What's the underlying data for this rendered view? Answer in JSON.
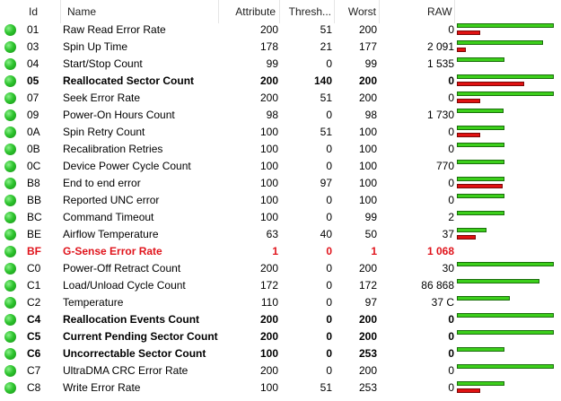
{
  "columns": {
    "id": "Id",
    "name": "Name",
    "attribute": "Attribute",
    "threshold": "Thresh...",
    "worst": "Worst",
    "raw": "RAW"
  },
  "colors": {
    "ok_dot": "#2ec42e",
    "green_bar": "#3ccf1b",
    "red_bar": "#e01212",
    "alert_text": "#e0141c"
  },
  "rows": [
    {
      "id": "01",
      "name": "Raw Read Error Rate",
      "attr": "200",
      "thr": "51",
      "worst": "200",
      "raw": "0",
      "style": "normal",
      "green": 0.98,
      "red": 0.24
    },
    {
      "id": "03",
      "name": "Spin Up Time",
      "attr": "178",
      "thr": "21",
      "worst": "177",
      "raw": "2 091",
      "style": "normal",
      "green": 0.87,
      "red": 0.09
    },
    {
      "id": "04",
      "name": "Start/Stop Count",
      "attr": "99",
      "thr": "0",
      "worst": "99",
      "raw": "1 535",
      "style": "normal",
      "green": 0.48,
      "red": 0
    },
    {
      "id": "05",
      "name": "Reallocated Sector Count",
      "attr": "200",
      "thr": "140",
      "worst": "200",
      "raw": "0",
      "style": "bold",
      "green": 0.98,
      "red": 0.68
    },
    {
      "id": "07",
      "name": "Seek Error Rate",
      "attr": "200",
      "thr": "51",
      "worst": "200",
      "raw": "0",
      "style": "normal",
      "green": 0.98,
      "red": 0.24
    },
    {
      "id": "09",
      "name": "Power-On Hours Count",
      "attr": "98",
      "thr": "0",
      "worst": "98",
      "raw": "1 730",
      "style": "normal",
      "green": 0.47,
      "red": 0
    },
    {
      "id": "0A",
      "name": "Spin Retry Count",
      "attr": "100",
      "thr": "51",
      "worst": "100",
      "raw": "0",
      "style": "normal",
      "green": 0.48,
      "red": 0.24
    },
    {
      "id": "0B",
      "name": "Recalibration Retries",
      "attr": "100",
      "thr": "0",
      "worst": "100",
      "raw": "0",
      "style": "normal",
      "green": 0.48,
      "red": 0
    },
    {
      "id": "0C",
      "name": "Device Power Cycle Count",
      "attr": "100",
      "thr": "0",
      "worst": "100",
      "raw": "770",
      "style": "normal",
      "green": 0.48,
      "red": 0
    },
    {
      "id": "B8",
      "name": "End to end error",
      "attr": "100",
      "thr": "97",
      "worst": "100",
      "raw": "0",
      "style": "normal",
      "green": 0.48,
      "red": 0.46
    },
    {
      "id": "BB",
      "name": "Reported UNC error",
      "attr": "100",
      "thr": "0",
      "worst": "100",
      "raw": "0",
      "style": "normal",
      "green": 0.48,
      "red": 0
    },
    {
      "id": "BC",
      "name": "Command Timeout",
      "attr": "100",
      "thr": "0",
      "worst": "99",
      "raw": "2",
      "style": "normal",
      "green": 0.48,
      "red": 0
    },
    {
      "id": "BE",
      "name": "Airflow Temperature",
      "attr": "63",
      "thr": "40",
      "worst": "50",
      "raw": "37",
      "style": "normal",
      "green": 0.3,
      "red": 0.19
    },
    {
      "id": "BF",
      "name": "G-Sense Error Rate",
      "attr": "1",
      "thr": "0",
      "worst": "1",
      "raw": "1 068",
      "style": "alert",
      "green": 0,
      "red": 0
    },
    {
      "id": "C0",
      "name": "Power-Off Retract Count",
      "attr": "200",
      "thr": "0",
      "worst": "200",
      "raw": "30",
      "style": "normal",
      "green": 0.98,
      "red": 0
    },
    {
      "id": "C1",
      "name": "Load/Unload Cycle Count",
      "attr": "172",
      "thr": "0",
      "worst": "172",
      "raw": "86 868",
      "style": "normal",
      "green": 0.84,
      "red": 0
    },
    {
      "id": "C2",
      "name": "Temperature",
      "attr": "110",
      "thr": "0",
      "worst": "97",
      "raw": "37 C",
      "style": "normal",
      "green": 0.54,
      "red": 0
    },
    {
      "id": "C4",
      "name": "Reallocation Events Count",
      "attr": "200",
      "thr": "0",
      "worst": "200",
      "raw": "0",
      "style": "bold",
      "green": 0.98,
      "red": 0
    },
    {
      "id": "C5",
      "name": "Current Pending Sector Count",
      "attr": "200",
      "thr": "0",
      "worst": "200",
      "raw": "0",
      "style": "bold",
      "green": 0.98,
      "red": 0
    },
    {
      "id": "C6",
      "name": "Uncorrectable Sector Count",
      "attr": "100",
      "thr": "0",
      "worst": "253",
      "raw": "0",
      "style": "bold",
      "green": 0.48,
      "red": 0
    },
    {
      "id": "C7",
      "name": "UltraDMA CRC Error Rate",
      "attr": "200",
      "thr": "0",
      "worst": "200",
      "raw": "0",
      "style": "normal",
      "green": 0.98,
      "red": 0
    },
    {
      "id": "C8",
      "name": "Write Error Rate",
      "attr": "100",
      "thr": "51",
      "worst": "253",
      "raw": "0",
      "style": "normal",
      "green": 0.48,
      "red": 0.24
    }
  ]
}
